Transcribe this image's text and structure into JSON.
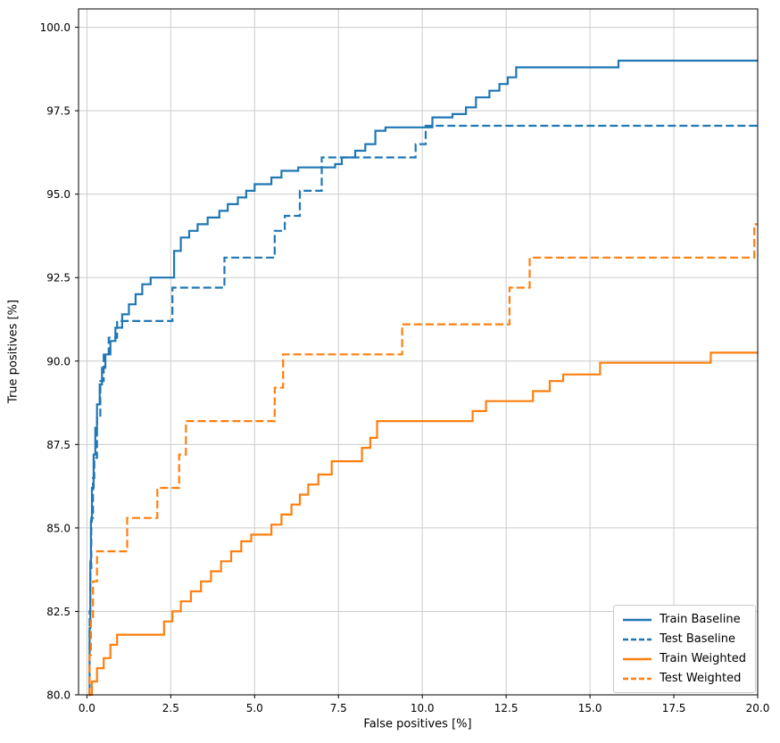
{
  "figure": {
    "background": "#ffffff",
    "grid_color": "#cccccc",
    "frame_color": "#000000",
    "tick_color": "#000000",
    "text_color": "#000000"
  },
  "chart_data": {
    "type": "line",
    "step": "post",
    "title": "",
    "xlabel": "False positives [%]",
    "ylabel": "True positives [%]",
    "xlim": [
      -0.25,
      20.0
    ],
    "ylim": [
      80.0,
      100.55
    ],
    "xticks": [
      0.0,
      2.5,
      5.0,
      7.5,
      10.0,
      12.5,
      15.0,
      17.5,
      20.0
    ],
    "yticks": [
      80.0,
      82.5,
      85.0,
      87.5,
      90.0,
      92.5,
      95.0,
      97.5,
      100.0
    ],
    "tick_label_decimals": 1,
    "grid": true,
    "legend_position": "lower right",
    "series": [
      {
        "name": "Train Baseline",
        "color": "#1f77b4",
        "style": "solid",
        "points": [
          [
            0.05,
            80.0
          ],
          [
            0.08,
            82.0
          ],
          [
            0.1,
            84.0
          ],
          [
            0.12,
            85.2
          ],
          [
            0.15,
            86.2
          ],
          [
            0.2,
            87.2
          ],
          [
            0.25,
            88.0
          ],
          [
            0.3,
            88.7
          ],
          [
            0.38,
            89.3
          ],
          [
            0.45,
            89.8
          ],
          [
            0.55,
            90.2
          ],
          [
            0.7,
            90.6
          ],
          [
            0.85,
            91.0
          ],
          [
            1.05,
            91.4
          ],
          [
            1.25,
            91.7
          ],
          [
            1.45,
            92.0
          ],
          [
            1.65,
            92.3
          ],
          [
            1.9,
            92.5
          ],
          [
            2.6,
            93.3
          ],
          [
            2.8,
            93.7
          ],
          [
            3.05,
            93.9
          ],
          [
            3.3,
            94.1
          ],
          [
            3.6,
            94.3
          ],
          [
            3.95,
            94.5
          ],
          [
            4.2,
            94.7
          ],
          [
            4.5,
            94.9
          ],
          [
            4.75,
            95.1
          ],
          [
            5.0,
            95.3
          ],
          [
            5.5,
            95.5
          ],
          [
            5.8,
            95.7
          ],
          [
            6.3,
            95.8
          ],
          [
            7.4,
            95.9
          ],
          [
            7.6,
            96.1
          ],
          [
            8.0,
            96.3
          ],
          [
            8.3,
            96.5
          ],
          [
            8.6,
            96.9
          ],
          [
            8.9,
            97.0
          ],
          [
            10.3,
            97.3
          ],
          [
            10.9,
            97.4
          ],
          [
            11.3,
            97.6
          ],
          [
            11.6,
            97.9
          ],
          [
            12.0,
            98.1
          ],
          [
            12.3,
            98.3
          ],
          [
            12.55,
            98.5
          ],
          [
            12.8,
            98.8
          ],
          [
            15.85,
            99.0
          ],
          [
            20.0,
            99.0
          ]
        ]
      },
      {
        "name": "Test Baseline",
        "color": "#1f77b4",
        "style": "dashed",
        "points": [
          [
            0.05,
            80.0
          ],
          [
            0.08,
            82.5
          ],
          [
            0.1,
            83.8
          ],
          [
            0.13,
            85.3
          ],
          [
            0.18,
            86.5
          ],
          [
            0.22,
            87.1
          ],
          [
            0.3,
            88.3
          ],
          [
            0.4,
            89.4
          ],
          [
            0.5,
            90.2
          ],
          [
            0.65,
            90.7
          ],
          [
            0.9,
            91.2
          ],
          [
            2.55,
            92.2
          ],
          [
            4.1,
            93.1
          ],
          [
            5.6,
            93.9
          ],
          [
            5.9,
            94.35
          ],
          [
            6.35,
            95.1
          ],
          [
            7.0,
            96.1
          ],
          [
            9.8,
            96.5
          ],
          [
            10.1,
            97.05
          ],
          [
            20.0,
            97.05
          ]
        ]
      },
      {
        "name": "Train Weighted",
        "color": "#ff7f0e",
        "style": "solid",
        "points": [
          [
            0.05,
            80.0
          ],
          [
            0.15,
            80.4
          ],
          [
            0.3,
            80.8
          ],
          [
            0.5,
            81.1
          ],
          [
            0.7,
            81.5
          ],
          [
            0.9,
            81.8
          ],
          [
            2.3,
            82.2
          ],
          [
            2.55,
            82.5
          ],
          [
            2.8,
            82.8
          ],
          [
            3.1,
            83.1
          ],
          [
            3.4,
            83.4
          ],
          [
            3.7,
            83.7
          ],
          [
            4.0,
            84.0
          ],
          [
            4.3,
            84.3
          ],
          [
            4.6,
            84.6
          ],
          [
            4.9,
            84.8
          ],
          [
            5.5,
            85.1
          ],
          [
            5.8,
            85.4
          ],
          [
            6.1,
            85.7
          ],
          [
            6.35,
            86.0
          ],
          [
            6.6,
            86.3
          ],
          [
            6.9,
            86.6
          ],
          [
            7.3,
            87.0
          ],
          [
            8.2,
            87.4
          ],
          [
            8.45,
            87.7
          ],
          [
            8.65,
            88.2
          ],
          [
            11.5,
            88.5
          ],
          [
            11.9,
            88.8
          ],
          [
            13.3,
            89.1
          ],
          [
            13.8,
            89.4
          ],
          [
            14.2,
            89.6
          ],
          [
            15.3,
            89.95
          ],
          [
            18.6,
            90.25
          ],
          [
            20.0,
            90.25
          ]
        ]
      },
      {
        "name": "Test Weighted",
        "color": "#ff7f0e",
        "style": "dashed",
        "points": [
          [
            0.05,
            80.0
          ],
          [
            0.08,
            81.2
          ],
          [
            0.12,
            82.3
          ],
          [
            0.18,
            83.4
          ],
          [
            0.3,
            84.3
          ],
          [
            1.2,
            85.3
          ],
          [
            2.1,
            86.2
          ],
          [
            2.75,
            87.2
          ],
          [
            2.95,
            88.2
          ],
          [
            5.6,
            89.2
          ],
          [
            5.85,
            90.2
          ],
          [
            9.4,
            91.1
          ],
          [
            12.6,
            92.2
          ],
          [
            13.2,
            93.1
          ],
          [
            19.9,
            94.1
          ],
          [
            20.0,
            94.1
          ]
        ]
      }
    ]
  },
  "legend": {
    "entries": [
      "Train Baseline",
      "Test Baseline",
      "Train Weighted",
      "Test Weighted"
    ]
  }
}
